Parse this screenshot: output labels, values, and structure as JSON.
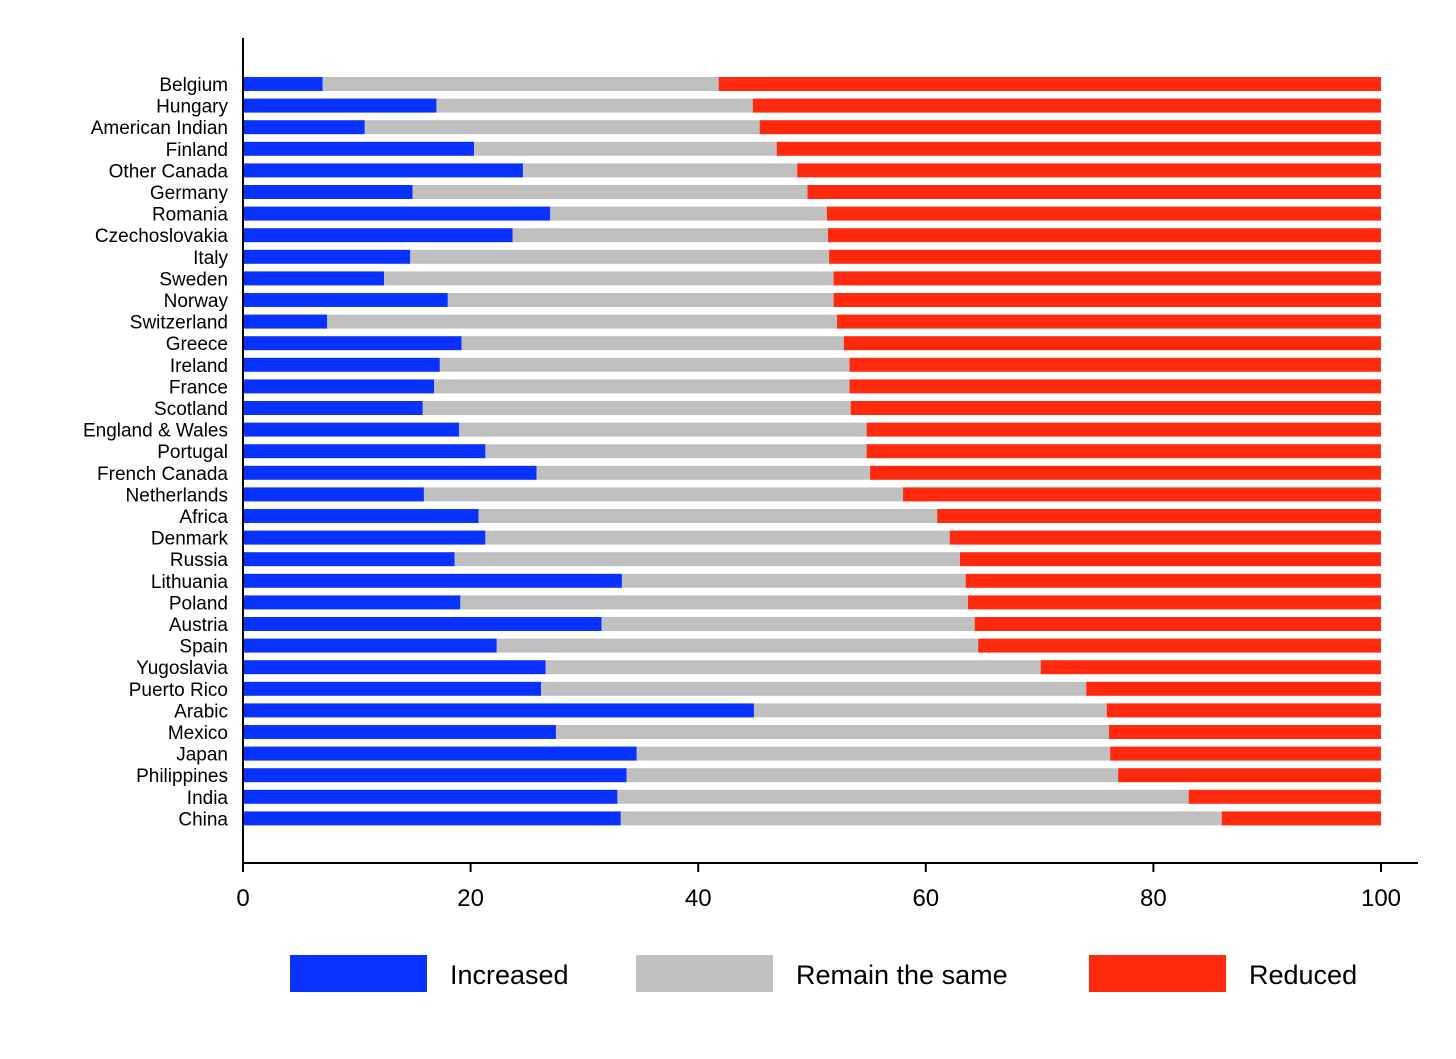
{
  "chart_data": {
    "type": "bar",
    "orientation": "horizontal",
    "stacked": true,
    "xlabel": "",
    "ylabel": "",
    "xlim": [
      0,
      100
    ],
    "xticks": [
      0,
      20,
      40,
      60,
      80,
      100
    ],
    "grid": false,
    "legend_position": "bottom",
    "categories": [
      "Belgium",
      "Hungary",
      "American Indian",
      "Finland",
      "Other Canada",
      "Germany",
      "Romania",
      "Czechoslovakia",
      "Italy",
      "Sweden",
      "Norway",
      "Switzerland",
      "Greece",
      "Ireland",
      "France",
      "Scotland",
      "England & Wales",
      "Portugal",
      "French Canada",
      "Netherlands",
      "Africa",
      "Denmark",
      "Russia",
      "Lithuania",
      "Poland",
      "Austria",
      "Spain",
      "Yugoslavia",
      "Puerto Rico",
      "Arabic",
      "Mexico",
      "Japan",
      "Philippines",
      "India",
      "China"
    ],
    "series": [
      {
        "name": "Increased",
        "color": "#0a32ff",
        "values": [
          7.0,
          17.0,
          10.7,
          20.3,
          24.6,
          14.9,
          27.0,
          23.7,
          14.7,
          12.4,
          18.0,
          7.4,
          19.2,
          17.3,
          16.8,
          15.8,
          19.0,
          21.3,
          25.8,
          15.9,
          20.7,
          21.3,
          18.6,
          33.3,
          19.1,
          31.5,
          22.3,
          26.6,
          26.2,
          44.9,
          27.5,
          34.6,
          33.7,
          32.9,
          33.2
        ]
      },
      {
        "name": "Remain the same",
        "color": "#c0c0c0",
        "values": [
          34.8,
          27.8,
          34.7,
          26.6,
          24.1,
          34.7,
          24.3,
          27.7,
          36.8,
          39.5,
          33.9,
          44.8,
          33.6,
          36.0,
          36.5,
          37.6,
          35.8,
          33.5,
          29.3,
          42.1,
          40.3,
          40.8,
          44.4,
          30.2,
          44.6,
          32.8,
          42.3,
          43.5,
          47.9,
          31.0,
          48.6,
          41.6,
          43.2,
          50.2,
          52.8
        ]
      },
      {
        "name": "Reduced",
        "color": "#ff2a0e",
        "values": [
          58.2,
          55.2,
          54.6,
          53.1,
          51.3,
          50.4,
          48.7,
          48.6,
          48.5,
          48.1,
          48.1,
          47.8,
          47.2,
          46.7,
          46.7,
          46.6,
          45.2,
          45.2,
          44.9,
          42.0,
          39.0,
          37.9,
          37.0,
          36.5,
          36.3,
          35.7,
          35.4,
          29.9,
          25.9,
          24.1,
          23.9,
          23.8,
          23.1,
          16.9,
          14.0
        ]
      }
    ]
  }
}
